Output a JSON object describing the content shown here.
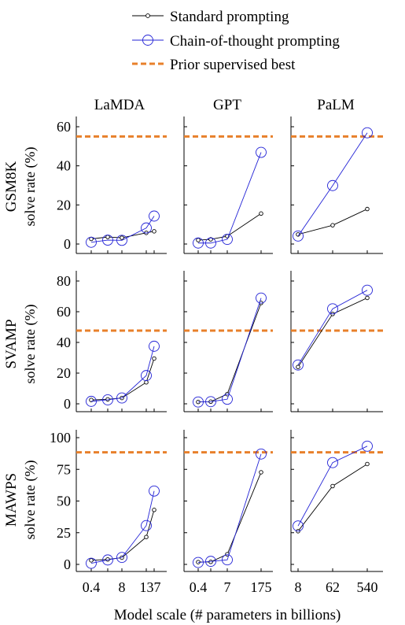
{
  "legend": {
    "standard": "Standard prompting",
    "cot": "Chain-of-thought prompting",
    "prior": "Prior supervised best"
  },
  "colors": {
    "standard": "#000000",
    "cot": "#2323d6",
    "prior": "#e8802b"
  },
  "xlabel": "Model scale (# parameters in billions)",
  "columns": [
    "LaMDA",
    "GPT",
    "PaLM"
  ],
  "rows": [
    {
      "dataset": "GSM8K",
      "ylabel": "solve rate (%)"
    },
    {
      "dataset": "SVAMP",
      "ylabel": "solve rate (%)"
    },
    {
      "dataset": "MAWPS",
      "ylabel": "solve rate (%)"
    }
  ],
  "chart_data": [
    {
      "type": "line",
      "model": "LaMDA",
      "dataset": "GSM8K",
      "x_index": [
        0,
        1,
        2,
        3,
        4
      ],
      "x_ticks": [
        "0.4",
        "8",
        "137"
      ],
      "ylim": [
        0,
        65
      ],
      "y_ticks": [
        0,
        20,
        40,
        60
      ],
      "series": [
        {
          "name": "Standard prompting",
          "values": [
            2.6,
            3.6,
            3.2,
            5.7,
            6.5
          ]
        },
        {
          "name": "Chain-of-thought prompting",
          "values": [
            0.9,
            2.0,
            1.9,
            8.2,
            14.3
          ]
        }
      ],
      "prior_supervised_best": 55
    },
    {
      "type": "line",
      "model": "GPT",
      "dataset": "GSM8K",
      "x_index": [
        0,
        1,
        2,
        3
      ],
      "x_ticks": [
        "0.4",
        "7",
        "175"
      ],
      "ylim": [
        0,
        65
      ],
      "y_ticks": [
        0,
        20,
        40,
        60
      ],
      "series": [
        {
          "name": "Standard prompting",
          "values": [
            2.0,
            2.4,
            4.0,
            15.6
          ]
        },
        {
          "name": "Chain-of-thought prompting",
          "values": [
            0.5,
            0.5,
            2.4,
            46.9
          ]
        }
      ],
      "prior_supervised_best": 55
    },
    {
      "type": "line",
      "model": "PaLM",
      "dataset": "GSM8K",
      "x_index": [
        0,
        1,
        2
      ],
      "x_ticks": [
        "8",
        "62",
        "540"
      ],
      "ylim": [
        0,
        65
      ],
      "y_ticks": [
        0,
        20,
        40,
        60
      ],
      "series": [
        {
          "name": "Standard prompting",
          "values": [
            4.9,
            9.6,
            17.9
          ]
        },
        {
          "name": "Chain-of-thought prompting",
          "values": [
            4.1,
            29.9,
            56.9
          ]
        }
      ],
      "prior_supervised_best": 55
    },
    {
      "type": "line",
      "model": "LaMDA",
      "dataset": "SVAMP",
      "x_index": [
        0,
        1,
        2,
        3,
        4
      ],
      "x_ticks": [
        "0.4",
        "8",
        "137"
      ],
      "ylim": [
        0,
        85
      ],
      "y_ticks": [
        0,
        20,
        40,
        60,
        80
      ],
      "series": [
        {
          "name": "Standard prompting",
          "values": [
            2.5,
            2.9,
            3.8,
            14.0,
            29.5
          ]
        },
        {
          "name": "Chain-of-thought prompting",
          "values": [
            1.6,
            2.6,
            3.8,
            18.4,
            37.5
          ]
        }
      ],
      "prior_supervised_best": 47.7
    },
    {
      "type": "line",
      "model": "GPT",
      "dataset": "SVAMP",
      "x_index": [
        0,
        1,
        2,
        3
      ],
      "x_ticks": [
        "0.4",
        "7",
        "175"
      ],
      "ylim": [
        0,
        85
      ],
      "y_ticks": [
        0,
        20,
        40,
        60,
        80
      ],
      "series": [
        {
          "name": "Standard prompting",
          "values": [
            1.2,
            1.4,
            6.3,
            65.7
          ]
        },
        {
          "name": "Chain-of-thought prompting",
          "values": [
            1.2,
            1.4,
            3.0,
            68.9
          ]
        }
      ],
      "prior_supervised_best": 47.7
    },
    {
      "type": "line",
      "model": "PaLM",
      "dataset": "SVAMP",
      "x_index": [
        0,
        1,
        2
      ],
      "x_ticks": [
        "8",
        "62",
        "540"
      ],
      "ylim": [
        0,
        85
      ],
      "y_ticks": [
        0,
        20,
        40,
        60,
        80
      ],
      "series": [
        {
          "name": "Standard prompting",
          "values": [
            24.0,
            58.5,
            69.0
          ]
        },
        {
          "name": "Chain-of-thought prompting",
          "values": [
            25.3,
            61.9,
            74.0
          ]
        }
      ],
      "prior_supervised_best": 47.7
    },
    {
      "type": "line",
      "model": "LaMDA",
      "dataset": "MAWPS",
      "x_index": [
        0,
        1,
        2,
        3,
        4
      ],
      "x_ticks": [
        "0.4",
        "8",
        "137"
      ],
      "ylim": [
        0,
        100
      ],
      "y_ticks": [
        0,
        25,
        50,
        75,
        100
      ],
      "series": [
        {
          "name": "Standard prompting",
          "values": [
            3.2,
            3.9,
            5.3,
            21.6,
            43.0
          ]
        },
        {
          "name": "Chain-of-thought prompting",
          "values": [
            0.9,
            3.5,
            5.5,
            30.6,
            57.9
          ]
        }
      ],
      "prior_supervised_best": 88.4
    },
    {
      "type": "line",
      "model": "GPT",
      "dataset": "MAWPS",
      "x_index": [
        0,
        1,
        2,
        3
      ],
      "x_ticks": [
        "0.4",
        "7",
        "175"
      ],
      "ylim": [
        0,
        100
      ],
      "y_ticks": [
        0,
        25,
        50,
        75,
        100
      ],
      "series": [
        {
          "name": "Standard prompting",
          "values": [
            1.8,
            2.0,
            8.0,
            72.7
          ]
        },
        {
          "name": "Chain-of-thought prompting",
          "values": [
            1.5,
            2.4,
            3.6,
            87.1
          ]
        }
      ],
      "prior_supervised_best": 88.4
    },
    {
      "type": "line",
      "model": "PaLM",
      "dataset": "MAWPS",
      "x_index": [
        0,
        1,
        2
      ],
      "x_ticks": [
        "8",
        "62",
        "540"
      ],
      "ylim": [
        0,
        100
      ],
      "y_ticks": [
        0,
        25,
        50,
        75,
        100
      ],
      "series": [
        {
          "name": "Standard prompting",
          "values": [
            26.2,
            61.8,
            79.2
          ]
        },
        {
          "name": "Chain-of-thought prompting",
          "values": [
            30.3,
            80.3,
            93.3
          ]
        }
      ],
      "prior_supervised_best": 88.4
    }
  ]
}
